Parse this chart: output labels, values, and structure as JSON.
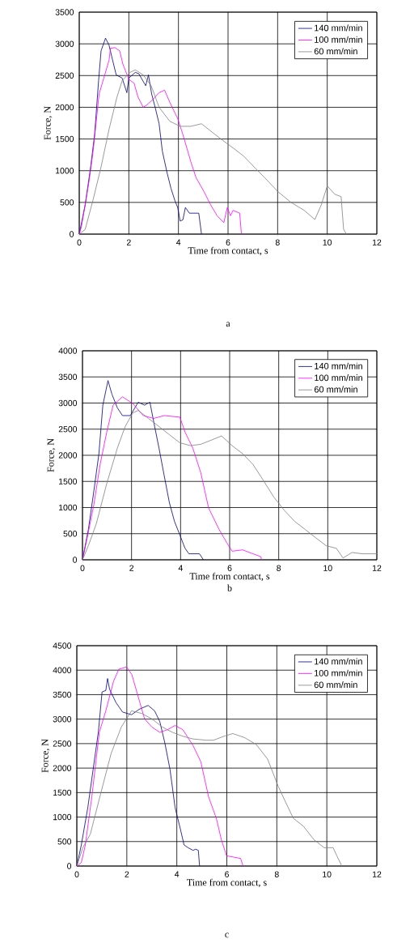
{
  "chart_data": [
    {
      "type": "line",
      "xlabel": "Time from contact, s",
      "ylabel": "Force, N",
      "annotations": [
        "a"
      ],
      "xlim": [
        0,
        12
      ],
      "xticks": [
        0,
        2,
        4,
        6,
        8,
        10,
        12
      ],
      "ylim": [
        0,
        3500
      ],
      "yticks": [
        0,
        500,
        1000,
        1500,
        2000,
        2500,
        3000,
        3500
      ],
      "grid": true,
      "legend": "top right",
      "marker": "none",
      "line_style": "solid",
      "series": [
        {
          "name": "140 mm/min",
          "color": "#000080",
          "x": [
            0,
            0.24,
            0.46,
            0.62,
            0.78,
            0.88,
            1.06,
            1.2,
            1.31,
            1.49,
            1.73,
            1.92,
            2.0,
            2.26,
            2.4,
            2.68,
            2.79,
            2.92,
            3.06,
            3.22,
            3.35,
            3.54,
            3.7,
            3.86,
            3.97,
            4.07,
            4.18,
            4.28,
            4.44,
            4.71,
            4.82,
            4.93
          ],
          "values": [
            0,
            460,
            1060,
            1570,
            2420,
            2890,
            3090,
            2980,
            2800,
            2510,
            2460,
            2230,
            2460,
            2550,
            2530,
            2340,
            2510,
            2210,
            2000,
            1740,
            1310,
            970,
            720,
            525,
            420,
            205,
            226,
            420,
            330,
            330,
            330,
            0
          ]
        },
        {
          "name": "100 mm/min",
          "color": "#ff00ff",
          "x": [
            0,
            0.09,
            0.4,
            0.56,
            0.8,
            0.99,
            1.2,
            1.26,
            1.44,
            1.63,
            1.76,
            2.0,
            2.21,
            2.37,
            2.58,
            2.74,
            2.96,
            3.22,
            3.44,
            3.65,
            3.97,
            4.18,
            4.5,
            4.71,
            5.03,
            5.3,
            5.56,
            5.83,
            5.97,
            6.1,
            6.2,
            6.47,
            6.54
          ],
          "values": [
            0,
            120,
            845,
            1310,
            2210,
            2460,
            2740,
            2930,
            2940,
            2890,
            2680,
            2440,
            2380,
            2160,
            2000,
            2040,
            2120,
            2230,
            2270,
            2080,
            1820,
            1570,
            1140,
            890,
            670,
            460,
            290,
            180,
            420,
            290,
            375,
            330,
            0
          ]
        },
        {
          "name": "60 mm/min",
          "color": "#808080",
          "x": [
            0,
            0.24,
            0.56,
            0.88,
            1.2,
            1.52,
            1.73,
            2.05,
            2.26,
            2.58,
            2.9,
            3.22,
            3.65,
            4.07,
            4.5,
            4.93,
            5.35,
            5.78,
            6.2,
            6.63,
            7.05,
            7.48,
            8.01,
            8.54,
            9.07,
            9.5,
            9.76,
            10.0,
            10.3,
            10.56,
            10.66,
            10.77
          ],
          "values": [
            0,
            75,
            545,
            1060,
            1650,
            2160,
            2420,
            2550,
            2590,
            2510,
            2340,
            2000,
            1780,
            1700,
            1700,
            1740,
            1610,
            1480,
            1360,
            1230,
            1060,
            890,
            670,
            500,
            375,
            230,
            460,
            760,
            630,
            590,
            75,
            0
          ]
        }
      ]
    },
    {
      "type": "line",
      "xlabel": "Time from contact, s",
      "ylabel": "Force, N",
      "annotations": [
        "b"
      ],
      "xlim": [
        0,
        12
      ],
      "xticks": [
        0,
        2,
        4,
        6,
        8,
        10,
        12
      ],
      "ylim": [
        0,
        4000
      ],
      "yticks": [
        0,
        500,
        1000,
        1500,
        2000,
        2500,
        3000,
        3500,
        4000
      ],
      "grid": true,
      "legend": "top right",
      "marker": "none",
      "line_style": "solid",
      "series": [
        {
          "name": "140 mm/min",
          "color": "#000080",
          "x": [
            0,
            0.24,
            0.46,
            0.67,
            0.83,
            1.04,
            1.2,
            1.42,
            1.63,
            1.95,
            2.27,
            2.53,
            2.75,
            2.9,
            3.12,
            3.33,
            3.54,
            3.75,
            3.97,
            4.18,
            4.34,
            4.77,
            4.93
          ],
          "values": [
            0,
            580,
            1305,
            2030,
            2960,
            3430,
            3170,
            2910,
            2760,
            2760,
            3015,
            2960,
            3015,
            2650,
            2135,
            1615,
            1100,
            735,
            475,
            220,
            115,
            115,
            0
          ]
        },
        {
          "name": "100 mm/min",
          "color": "#ff00ff",
          "x": [
            0,
            0.24,
            0.46,
            0.72,
            0.99,
            1.25,
            1.63,
            2.05,
            2.48,
            2.9,
            3.33,
            3.97,
            4.18,
            4.5,
            4.82,
            5.14,
            5.57,
            5.89,
            6.1,
            6.53,
            6.95,
            7.27,
            7.3
          ],
          "values": [
            0,
            530,
            1045,
            1825,
            2445,
            2960,
            3120,
            2990,
            2760,
            2705,
            2760,
            2730,
            2445,
            2135,
            1670,
            995,
            580,
            320,
            165,
            190,
            115,
            60,
            0
          ]
        },
        {
          "name": "60 mm/min",
          "color": "#808080",
          "x": [
            0,
            0.24,
            0.56,
            0.99,
            1.42,
            1.74,
            2.05,
            2.27,
            2.69,
            3.12,
            3.54,
            3.97,
            4.4,
            4.82,
            5.25,
            5.67,
            6.1,
            6.53,
            6.95,
            7.38,
            7.8,
            8.23,
            8.65,
            9.08,
            9.5,
            9.93,
            10.35,
            10.62,
            10.99,
            11.41,
            12
          ],
          "values": [
            0,
            270,
            685,
            1460,
            2135,
            2550,
            2810,
            2860,
            2705,
            2550,
            2395,
            2240,
            2185,
            2210,
            2290,
            2370,
            2185,
            2030,
            1825,
            1515,
            1200,
            945,
            735,
            580,
            425,
            270,
            220,
            35,
            140,
            115,
            115
          ]
        }
      ]
    },
    {
      "type": "line",
      "xlabel": "Time from contact, s",
      "ylabel": "Force, N",
      "annotations": [
        "c"
      ],
      "xlim": [
        0,
        12
      ],
      "xticks": [
        0,
        2,
        4,
        6,
        8,
        10,
        12
      ],
      "ylim": [
        0,
        4500
      ],
      "yticks": [
        0,
        500,
        1000,
        1500,
        2000,
        2500,
        3000,
        3500,
        4000,
        4500
      ],
      "grid": true,
      "legend": "top right",
      "marker": "none",
      "line_style": "solid",
      "series": [
        {
          "name": "140 mm/min",
          "color": "#000080",
          "x": [
            0,
            0.18,
            0.44,
            0.65,
            0.86,
            1.01,
            1.16,
            1.23,
            1.31,
            1.57,
            1.83,
            2.19,
            2.49,
            2.85,
            3.11,
            3.32,
            3.52,
            3.73,
            3.93,
            4.14,
            4.29,
            4.45,
            4.65,
            4.75,
            4.86,
            4.91
          ],
          "values": [
            0,
            430,
            1195,
            1965,
            2730,
            3555,
            3585,
            3830,
            3610,
            3335,
            3145,
            3090,
            3200,
            3280,
            3170,
            2950,
            2515,
            1965,
            1195,
            760,
            430,
            375,
            320,
            345,
            320,
            0
          ]
        },
        {
          "name": "100 mm/min",
          "color": "#ff00ff",
          "x": [
            0,
            0.18,
            0.34,
            0.6,
            0.9,
            1.16,
            1.47,
            1.68,
            1.99,
            2.2,
            2.4,
            2.71,
            3.0,
            3.32,
            3.63,
            3.93,
            4.24,
            4.65,
            4.96,
            5.27,
            5.58,
            5.78,
            5.99,
            6.29,
            6.55,
            6.65
          ],
          "values": [
            0,
            70,
            430,
            1415,
            2730,
            3170,
            3775,
            4020,
            4065,
            3910,
            3555,
            3005,
            2840,
            2730,
            2785,
            2870,
            2785,
            2460,
            2130,
            1415,
            975,
            540,
            210,
            180,
            155,
            0
          ]
        },
        {
          "name": "60 mm/min",
          "color": "#808080",
          "x": [
            0,
            0.24,
            0.54,
            0.95,
            1.37,
            1.78,
            2.19,
            2.6,
            3.0,
            3.42,
            3.83,
            4.24,
            4.65,
            5.17,
            5.47,
            5.88,
            6.24,
            6.7,
            7.17,
            7.63,
            8.05,
            8.35,
            8.66,
            9.07,
            9.48,
            9.89,
            10.25,
            10.4,
            10.6
          ],
          "values": [
            0,
            375,
            650,
            1470,
            2295,
            2840,
            3170,
            3115,
            3005,
            2840,
            2730,
            2650,
            2595,
            2570,
            2570,
            2650,
            2705,
            2625,
            2485,
            2185,
            1635,
            1305,
            975,
            810,
            540,
            375,
            375,
            210,
            0
          ]
        }
      ]
    }
  ]
}
